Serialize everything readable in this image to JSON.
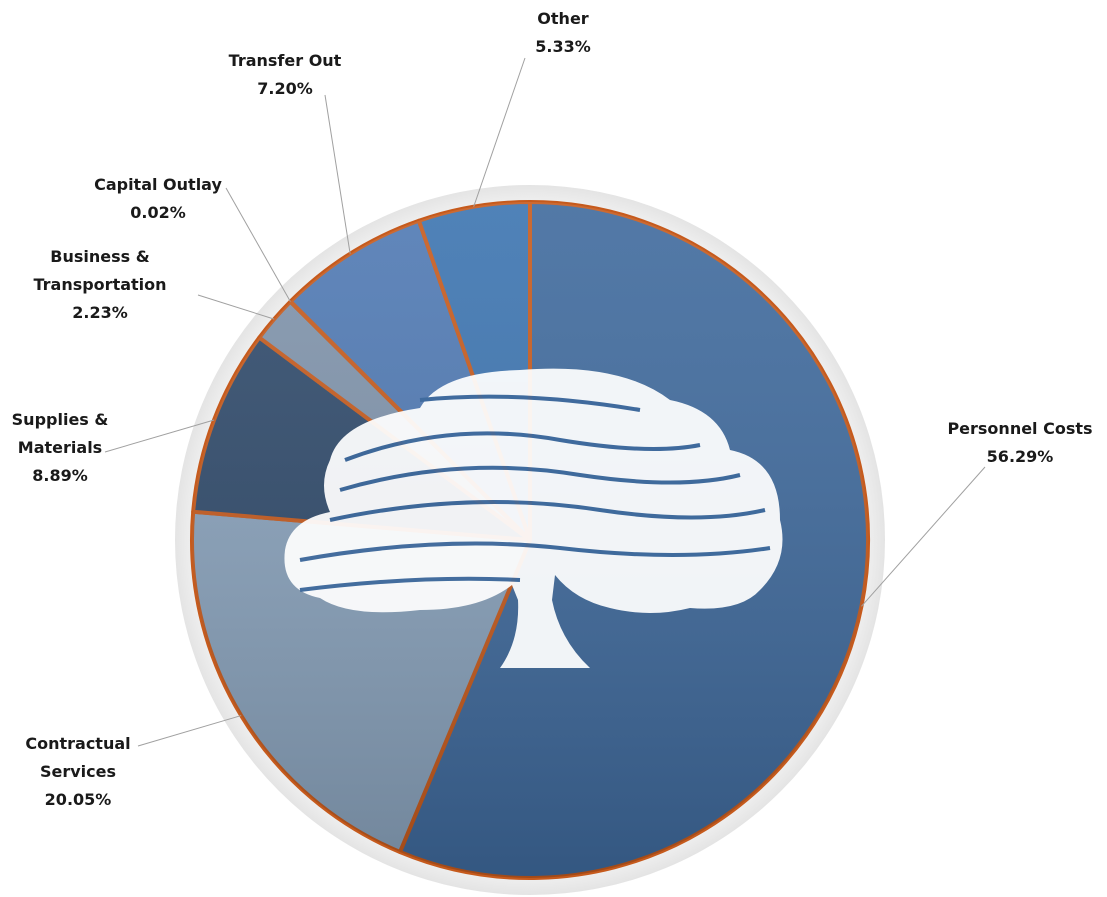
{
  "chart_data": {
    "type": "pie",
    "title": "",
    "colors": {
      "border": "#c65a1c",
      "shadow": "#e6e6e6"
    },
    "slices": [
      {
        "label_lines": [
          "Personnel Costs"
        ],
        "value_text": "56.29%",
        "value": 56.29,
        "color": "#3f6a9d"
      },
      {
        "label_lines": [
          "Contractual",
          "Services"
        ],
        "value_text": "20.05%",
        "value": 20.05,
        "color": "#8aa3bd"
      },
      {
        "label_lines": [
          "Supplies &",
          "Materials"
        ],
        "value_text": "8.89%",
        "value": 8.89,
        "color": "#2f4a6b"
      },
      {
        "label_lines": [
          "Business &",
          "Transportation"
        ],
        "value_text": "2.23%",
        "value": 2.23,
        "color": "#7f93ab"
      },
      {
        "label_lines": [
          "Capital Outlay"
        ],
        "value_text": "0.02%",
        "value": 0.02,
        "color": "#5c7fae"
      },
      {
        "label_lines": [
          "Transfer Out"
        ],
        "value_text": "7.20%",
        "value": 7.2,
        "color": "#4f79b3"
      },
      {
        "label_lines": [
          "Other"
        ],
        "value_text": "5.33%",
        "value": 5.33,
        "color": "#3c74b0"
      }
    ]
  }
}
